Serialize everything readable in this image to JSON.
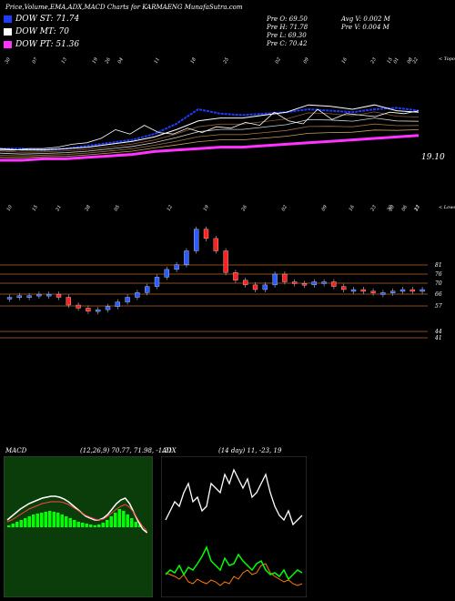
{
  "header": {
    "title": "Price,Volume,EMA,ADX,MACD Charts for KARMAENG MunafaSutra.com",
    "legend": [
      {
        "label": "DOW ST: 71.74",
        "color": "#1e3cff"
      },
      {
        "label": "DOW MT: 70",
        "color": "#ffffff"
      },
      {
        "label": "DOW PT: 51.36",
        "color": "#ff33ff"
      }
    ],
    "ohlc": {
      "open": "Pre O: 69.50",
      "high": "Pre H: 71.78",
      "low": "Pre L: 69.30",
      "close": "Pre C: 70.42"
    },
    "volume": {
      "avg": "Avg V: 0.002 M",
      "pre": "Pre V: 0.004 M"
    }
  },
  "top_panel": {
    "topo_label": "< Topo",
    "price_label": "19.10",
    "date_labels": [
      "30",
      "07",
      "13",
      "19",
      "26",
      "04",
      "11",
      "18",
      "25",
      "02",
      "09",
      "16",
      "23",
      "01",
      "08",
      "15",
      "22"
    ],
    "lower_label": "< Lower",
    "lower_date_labels": [
      "10",
      "15",
      "21",
      "28",
      "05",
      "12",
      "19",
      "26",
      "02",
      "09",
      "16",
      "23",
      "30",
      "06",
      "13",
      "20",
      "27"
    ]
  },
  "candle_panel": {
    "price_levels": [
      "81",
      "76",
      "70",
      "66",
      "57",
      "44",
      "41"
    ]
  },
  "macd": {
    "label": "MACD",
    "values": "(12,26,9) 70.77, 71.98, -1.21"
  },
  "adx": {
    "label": "ADX",
    "values": "(14 day) 11, -23, 19"
  },
  "colors": {
    "st": "#1e3cff",
    "mt": "#ffffff",
    "pt": "#ff33ff",
    "up": "#2a5cff",
    "down": "#ff2020",
    "level_line": "#b8672a",
    "macd_bar": "#00ff00"
  },
  "chart_data": [
    {
      "type": "line",
      "name_hint": "price-ema-panel",
      "series": [
        {
          "name": "DOW ST",
          "values": [
            23,
            23,
            22,
            23,
            25,
            27,
            29,
            33,
            40,
            50,
            47,
            46,
            47,
            48,
            50,
            49,
            48,
            50,
            51,
            49
          ]
        },
        {
          "name": "DOW MT",
          "values": [
            23,
            22,
            22,
            23,
            24,
            26,
            28,
            31,
            36,
            42,
            44,
            44,
            46,
            48,
            53,
            52,
            50,
            53,
            49,
            48
          ]
        },
        {
          "name": "DOW PT",
          "values": [
            15,
            15,
            16,
            16,
            17,
            18,
            19,
            21,
            22,
            23,
            24,
            24,
            25,
            26,
            27,
            28,
            29,
            30,
            31,
            32
          ]
        }
      ]
    },
    {
      "type": "bar",
      "name_hint": "candles",
      "values": [
        65,
        66,
        66,
        67,
        67,
        65,
        60,
        58,
        56,
        57,
        59,
        62,
        65,
        68,
        72,
        78,
        83,
        86,
        95,
        109,
        103,
        95,
        81,
        76,
        73,
        70,
        73,
        80,
        75,
        74,
        73,
        75,
        75,
        72,
        70,
        70,
        69,
        68,
        68,
        69,
        70,
        69,
        70
      ]
    }
  ]
}
